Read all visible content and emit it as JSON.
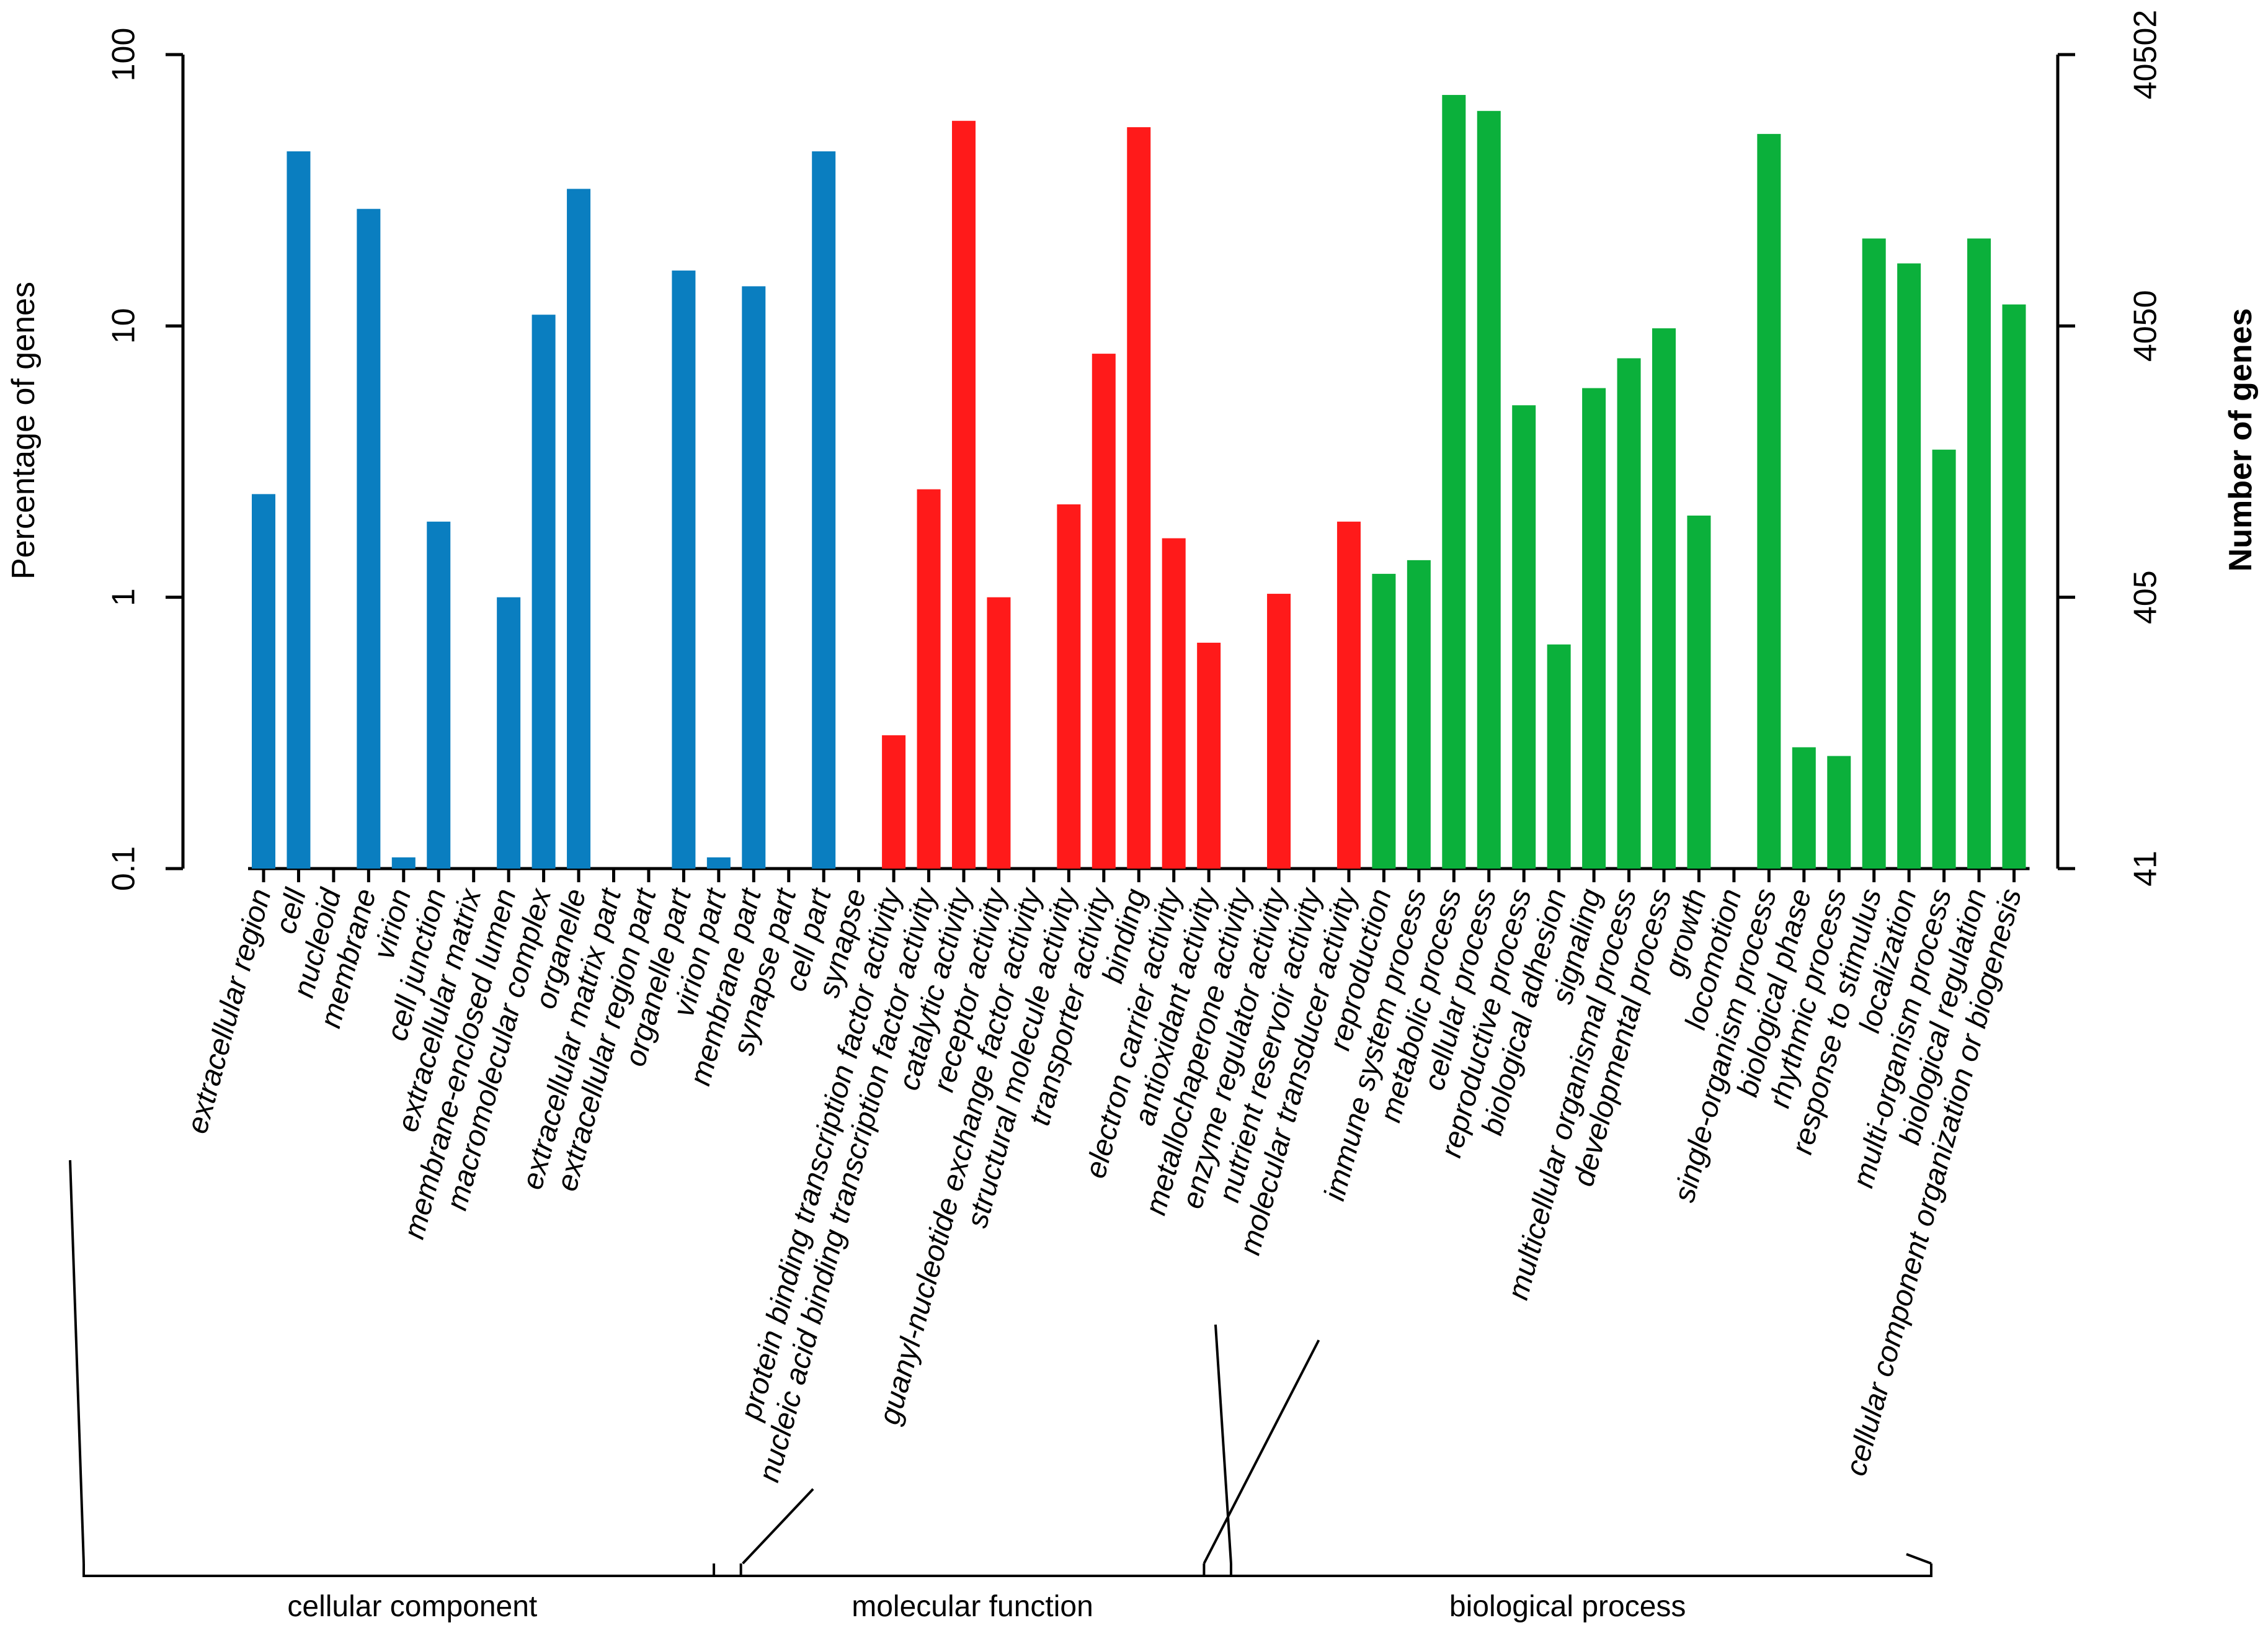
{
  "chart_data": {
    "type": "bar",
    "scale": "log",
    "ylabel_left": "Percentage of genes",
    "ylabel_right": "Number of genes",
    "left_ticks": [
      "100",
      "10",
      "1",
      "0.1"
    ],
    "left_tick_values": [
      100,
      10,
      1,
      0.1
    ],
    "right_ticks": [
      "40502",
      "4050",
      "405",
      "41"
    ],
    "ylim": [
      0.1,
      100
    ],
    "colors": {
      "cellular component": "#0a7ec0",
      "molecular function": "#ff1a1a",
      "biological process": "#0bb03b"
    },
    "groups": [
      {
        "name": "cellular component",
        "start": 0,
        "end": 17
      },
      {
        "name": "molecular function",
        "start": 18,
        "end": 31
      },
      {
        "name": "biological process",
        "start": 32,
        "end": 51
      }
    ],
    "categories": [
      {
        "label": "extracellular region",
        "value": 2.4,
        "group": "cellular component"
      },
      {
        "label": "cell",
        "value": 44,
        "group": "cellular component"
      },
      {
        "label": "nucleoid",
        "value": null,
        "group": "cellular component"
      },
      {
        "label": "membrane",
        "value": 27,
        "group": "cellular component"
      },
      {
        "label": "virion",
        "value": 0.11,
        "group": "cellular component"
      },
      {
        "label": "cell junction",
        "value": 1.9,
        "group": "cellular component"
      },
      {
        "label": "extracellular matrix",
        "value": null,
        "group": "cellular component"
      },
      {
        "label": "membrane-enclosed lumen",
        "value": 1.0,
        "group": "cellular component"
      },
      {
        "label": "macromolecular complex",
        "value": 11,
        "group": "cellular component"
      },
      {
        "label": "organelle",
        "value": 32,
        "group": "cellular component"
      },
      {
        "label": "extracellular matrix part",
        "value": null,
        "group": "cellular component"
      },
      {
        "label": "extracellular region part",
        "value": null,
        "group": "cellular component"
      },
      {
        "label": "organelle part",
        "value": 16,
        "group": "cellular component"
      },
      {
        "label": "virion part",
        "value": 0.11,
        "group": "cellular component"
      },
      {
        "label": "membrane part",
        "value": 14,
        "group": "cellular component"
      },
      {
        "label": "synapse part",
        "value": null,
        "group": "cellular component"
      },
      {
        "label": "cell part",
        "value": 44,
        "group": "cellular component"
      },
      {
        "label": "synapse",
        "value": null,
        "group": "cellular component"
      },
      {
        "label": "protein binding transcription factor activity",
        "value": 0.31,
        "group": "molecular function"
      },
      {
        "label": "nucleic acid binding transcription factor activity",
        "value": 2.5,
        "group": "molecular function"
      },
      {
        "label": "catalytic activity",
        "value": 57,
        "group": "molecular function"
      },
      {
        "label": "receptor activity",
        "value": 1.0,
        "group": "molecular function"
      },
      {
        "label": "guanyl-nucleotide exchange factor activity",
        "value": null,
        "group": "molecular function"
      },
      {
        "label": "structural molecule activity",
        "value": 2.2,
        "group": "molecular function"
      },
      {
        "label": "transporter activity",
        "value": 7.9,
        "group": "molecular function"
      },
      {
        "label": "binding",
        "value": 54,
        "group": "molecular function"
      },
      {
        "label": "electron carrier activity",
        "value": 1.65,
        "group": "molecular function"
      },
      {
        "label": "antioxidant activity",
        "value": 0.68,
        "group": "molecular function"
      },
      {
        "label": "metallochaperone activity",
        "value": null,
        "group": "molecular function"
      },
      {
        "label": "enzyme regulator activity",
        "value": 1.03,
        "group": "molecular function"
      },
      {
        "label": "nutrient reservoir activity",
        "value": null,
        "group": "molecular function"
      },
      {
        "label": "molecular transducer activity",
        "value": 1.9,
        "group": "molecular function"
      },
      {
        "label": "reproduction",
        "value": 1.22,
        "group": "biological process"
      },
      {
        "label": "immune system process",
        "value": 1.37,
        "group": "biological process"
      },
      {
        "label": "metabolic process",
        "value": 71,
        "group": "biological process"
      },
      {
        "label": "cellular process",
        "value": 62,
        "group": "biological process"
      },
      {
        "label": "reproductive process",
        "value": 5.1,
        "group": "biological process"
      },
      {
        "label": "biological adhesion",
        "value": 0.67,
        "group": "biological process"
      },
      {
        "label": "signaling",
        "value": 5.9,
        "group": "biological process"
      },
      {
        "label": "multicellular organismal process",
        "value": 7.6,
        "group": "biological process"
      },
      {
        "label": "developmental process",
        "value": 9.8,
        "group": "biological process"
      },
      {
        "label": "growth",
        "value": 2.0,
        "group": "biological process"
      },
      {
        "label": "locomotion",
        "value": null,
        "group": "biological process"
      },
      {
        "label": "single-organism process",
        "value": 51,
        "group": "biological process"
      },
      {
        "label": "biological phase",
        "value": 0.28,
        "group": "biological process"
      },
      {
        "label": "rhythmic process",
        "value": 0.26,
        "group": "biological process"
      },
      {
        "label": "response to stimulus",
        "value": 21,
        "group": "biological process"
      },
      {
        "label": "localization",
        "value": 17,
        "group": "biological process"
      },
      {
        "label": "multi-organism process",
        "value": 3.5,
        "group": "biological process"
      },
      {
        "label": "biological regulation",
        "value": 21,
        "group": "biological process"
      },
      {
        "label": "cellular component organization or biogenesis",
        "value": 12,
        "group": "biological process"
      }
    ]
  }
}
